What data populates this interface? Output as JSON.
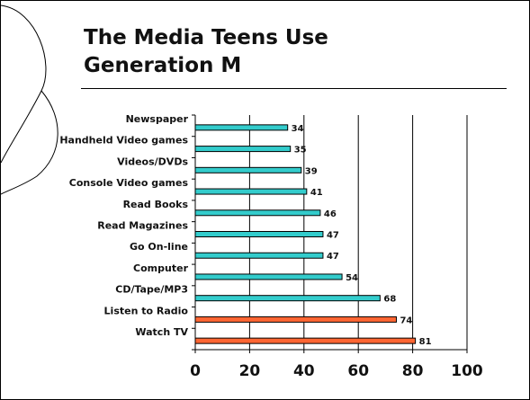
{
  "slide": {
    "title_line1": "The Media Teens Use",
    "title_line2": "Generation M"
  },
  "colors": {
    "teal": "#33cccc",
    "orange": "#ff6633",
    "outline": "#000000"
  },
  "chart_data": {
    "type": "bar",
    "orientation": "horizontal",
    "title": "",
    "xlabel": "",
    "ylabel": "",
    "categories": [
      "Newspaper",
      "Handheld Video games",
      "Videos/DVDs",
      "Console Video games",
      "Read Books",
      "Read Magazines",
      "Go On-line",
      "Computer",
      "CD/Tape/MP3",
      "Listen to Radio",
      "Watch TV"
    ],
    "values": [
      34,
      35,
      39,
      41,
      46,
      47,
      47,
      54,
      68,
      74,
      81
    ],
    "bar_colors": [
      "teal",
      "teal",
      "teal",
      "teal",
      "teal",
      "teal",
      "teal",
      "teal",
      "teal",
      "orange",
      "orange"
    ],
    "xlim": [
      0,
      100
    ],
    "xticks": [
      0,
      20,
      40,
      60,
      80,
      100
    ],
    "grid": "vertical",
    "legend": "none"
  }
}
